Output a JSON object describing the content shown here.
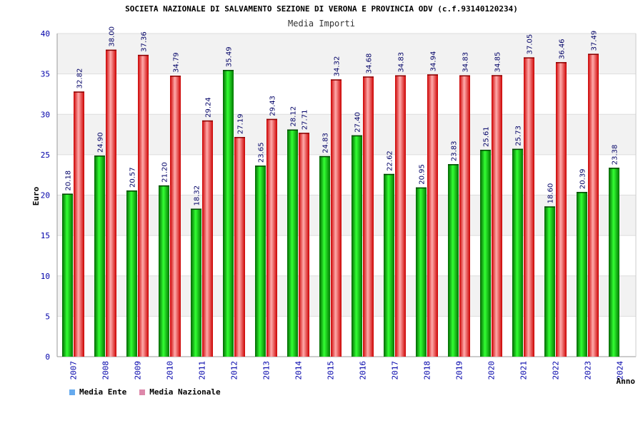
{
  "chart_data": {
    "type": "bar",
    "title": "SOCIETA NAZIONALE DI SALVAMENTO SEZIONE DI VERONA E PROVINCIA ODV (c.f.93140120234)",
    "subtitle": "Media Importi",
    "xlabel": "Anno",
    "ylabel": "Euro",
    "ylim": [
      0,
      40
    ],
    "yticks": [
      "0",
      "5",
      "10",
      "15",
      "20",
      "25",
      "30",
      "35",
      "40"
    ],
    "categories": [
      "2007",
      "2008",
      "2009",
      "2010",
      "2011",
      "2012",
      "2013",
      "2014",
      "2015",
      "2016",
      "2017",
      "2018",
      "2019",
      "2020",
      "2021",
      "2022",
      "2023",
      "2024"
    ],
    "series": [
      {
        "name": "Media Ente",
        "color": "#00cc00",
        "legend_color": "#66aaee",
        "values": [
          20.18,
          24.9,
          20.57,
          21.2,
          18.32,
          35.49,
          23.65,
          28.12,
          24.83,
          27.4,
          22.62,
          20.95,
          23.83,
          25.61,
          25.73,
          18.6,
          20.39,
          23.38
        ],
        "labels": [
          "20.18",
          "24.90",
          "20.57",
          "21.20",
          "18.32",
          "35.49",
          "23.65",
          "28.12",
          "24.83",
          "27.40",
          "22.62",
          "20.95",
          "23.83",
          "25.61",
          "25.73",
          "18.60",
          "20.39",
          "23.38"
        ]
      },
      {
        "name": "Media Nazionale",
        "color": "#ee2222",
        "legend_color": "#dd88aa",
        "values": [
          32.82,
          38.0,
          37.36,
          34.79,
          29.24,
          27.19,
          29.43,
          27.71,
          34.32,
          34.68,
          34.83,
          34.94,
          34.83,
          34.85,
          37.05,
          36.46,
          37.49,
          null
        ],
        "labels": [
          "32.82",
          "38.00",
          "37.36",
          "34.79",
          "29.24",
          "27.19",
          "29.43",
          "27.71",
          "34.32",
          "34.68",
          "34.83",
          "34.94",
          "34.83",
          "34.85",
          "37.05",
          "36.46",
          "37.49",
          ""
        ]
      }
    ]
  }
}
